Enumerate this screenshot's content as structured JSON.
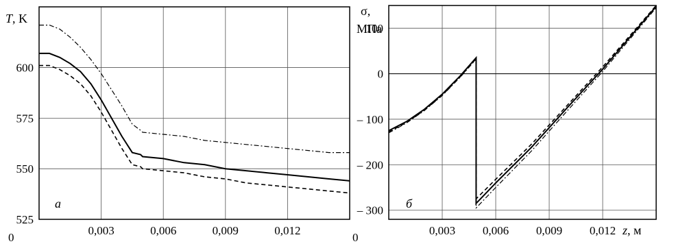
{
  "chart_data": [
    {
      "type": "line",
      "panel_label": "а",
      "ylabel_symbol": "T",
      "ylabel_unit": ", K",
      "xlim": [
        0,
        0.015
      ],
      "ylim": [
        525,
        630
      ],
      "x_ticks": [
        0.003,
        0.006,
        0.009,
        0.012
      ],
      "x_tick_labels": [
        "0,003",
        "0,006",
        "0,009",
        "0,012"
      ],
      "y_ticks": [
        525,
        550,
        575,
        600
      ],
      "y_tick_labels": [
        "525",
        "550",
        "575",
        "600"
      ],
      "origin_label": "0",
      "grid": true,
      "series": [
        {
          "style": "solid",
          "x": [
            0.0,
            0.0005,
            0.001,
            0.0015,
            0.002,
            0.0025,
            0.003,
            0.0035,
            0.004,
            0.0045,
            0.0049,
            0.005,
            0.006,
            0.007,
            0.008,
            0.009,
            0.01,
            0.011,
            0.012,
            0.013,
            0.014,
            0.015
          ],
          "y": [
            607,
            607,
            605,
            602,
            598,
            592,
            584,
            575,
            566,
            558,
            557,
            556,
            555,
            553,
            552,
            550,
            549,
            548,
            547,
            546,
            545,
            544
          ]
        },
        {
          "style": "dashed",
          "x": [
            0.0,
            0.0005,
            0.001,
            0.0015,
            0.002,
            0.0025,
            0.003,
            0.0035,
            0.004,
            0.0045,
            0.0049,
            0.005,
            0.006,
            0.007,
            0.008,
            0.009,
            0.01,
            0.011,
            0.012,
            0.013,
            0.014,
            0.015
          ],
          "y": [
            601,
            601,
            599,
            596,
            592,
            586,
            578,
            569,
            560,
            552,
            551,
            550,
            549,
            548,
            546,
            545,
            543,
            542,
            541,
            540,
            539,
            538
          ]
        },
        {
          "style": "dashdot",
          "x": [
            0.0,
            0.0005,
            0.001,
            0.0015,
            0.002,
            0.0025,
            0.003,
            0.0035,
            0.004,
            0.0045,
            0.0049,
            0.005,
            0.006,
            0.007,
            0.008,
            0.009,
            0.01,
            0.011,
            0.012,
            0.013,
            0.014,
            0.015
          ],
          "y": [
            621,
            621,
            619,
            615,
            610,
            604,
            597,
            589,
            581,
            572,
            569,
            568,
            567,
            566,
            564,
            563,
            562,
            561,
            560,
            559,
            558,
            558
          ]
        }
      ]
    },
    {
      "type": "line",
      "panel_label": "б",
      "ylabel_line1": "σ,",
      "ylabel_line2": "МПа",
      "xlabel_symbol": "z",
      "xlabel_unit": ", м",
      "xlim": [
        0,
        0.015
      ],
      "ylim": [
        -320,
        150
      ],
      "x_ticks": [
        0.003,
        0.006,
        0.009,
        0.012
      ],
      "x_tick_labels": [
        "0,003",
        "0,006",
        "0,009",
        "0,012"
      ],
      "y_ticks": [
        100,
        0,
        -100,
        -200,
        -300
      ],
      "y_tick_labels": [
        "100",
        "0",
        "– 100",
        "– 200",
        "– 300"
      ],
      "origin_label": "0",
      "grid": true,
      "series": [
        {
          "style": "solid",
          "x": [
            0.0,
            0.001,
            0.002,
            0.003,
            0.004,
            0.0049,
            0.0049,
            0.006,
            0.008,
            0.01,
            0.012,
            0.015
          ],
          "y": [
            -125,
            -105,
            -78,
            -45,
            -5,
            35,
            -285,
            -240,
            -162,
            -75,
            10,
            148
          ]
        },
        {
          "style": "dashed",
          "x": [
            0.0,
            0.001,
            0.002,
            0.003,
            0.004,
            0.0049,
            0.0049,
            0.006,
            0.008,
            0.01,
            0.012,
            0.015
          ],
          "y": [
            -128,
            -107,
            -80,
            -47,
            -7,
            33,
            -275,
            -232,
            -155,
            -70,
            15,
            150
          ]
        },
        {
          "style": "dashdot",
          "x": [
            0.0,
            0.001,
            0.002,
            0.003,
            0.004,
            0.0049,
            0.0049,
            0.006,
            0.008,
            0.01,
            0.012,
            0.015
          ],
          "y": [
            -130,
            -108,
            -81,
            -48,
            -8,
            32,
            -295,
            -250,
            -170,
            -82,
            5,
            145
          ]
        }
      ]
    }
  ]
}
